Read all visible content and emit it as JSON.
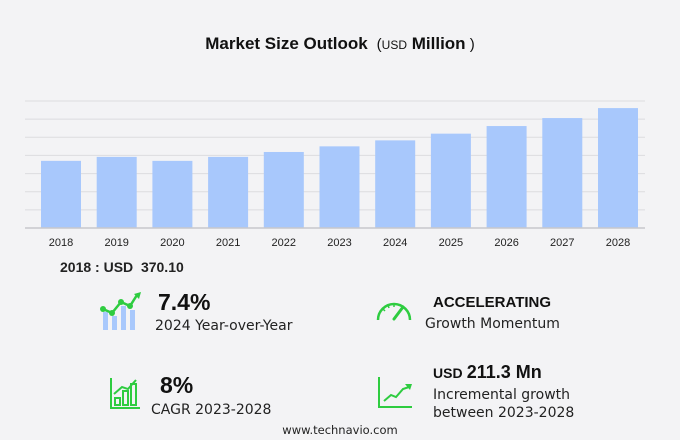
{
  "chart_data": {
    "type": "bar",
    "title": "Market Size Outlook",
    "unit_prefix": "USD",
    "unit": "Million",
    "categories": [
      "2018",
      "2019",
      "2020",
      "2021",
      "2022",
      "2023",
      "2024",
      "2025",
      "2026",
      "2027",
      "2028"
    ],
    "values": [
      370.1,
      392,
      370,
      392,
      419,
      450,
      483,
      520,
      562,
      606,
      661
    ],
    "ylim": [
      0,
      700
    ],
    "grid": true,
    "bar_color": "#a8c8fc"
  },
  "base_value": {
    "year": "2018",
    "sep": ":",
    "currency": "USD",
    "value": "370.10"
  },
  "stats": {
    "yoy": {
      "value": "7.4%",
      "label": "2024 Year-over-Year",
      "icon": "chart-trend-icon"
    },
    "momentum": {
      "value": "ACCELERATING",
      "label": "Growth Momentum",
      "icon": "speedometer-icon"
    },
    "cagr": {
      "value": "8%",
      "label": "CAGR 2023-2028",
      "icon": "bar-chart-icon"
    },
    "incremental": {
      "currency": "USD",
      "value": "211.3 Mn",
      "label1": "Incremental growth",
      "label2": "between 2023-2028",
      "icon": "line-growth-icon"
    }
  },
  "accent_color": "#2ecc40",
  "footer": "www.technavio.com"
}
